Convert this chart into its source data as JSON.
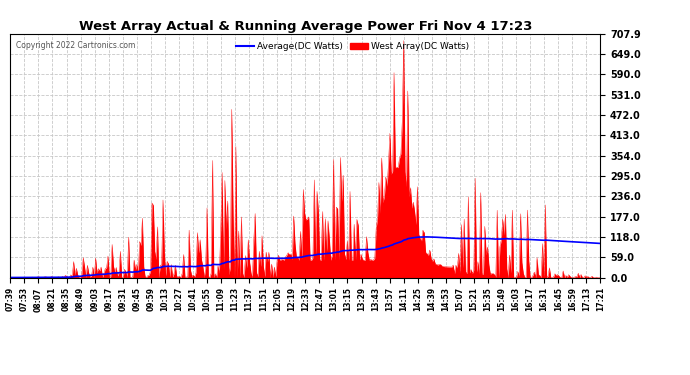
{
  "title": "West Array Actual & Running Average Power Fri Nov 4 17:23",
  "copyright": "Copyright 2022 Cartronics.com",
  "legend_avg": "Average(DC Watts)",
  "legend_west": "West Array(DC Watts)",
  "ymax": 707.9,
  "ymin": 0.0,
  "yticks": [
    0.0,
    59.0,
    118.0,
    177.0,
    236.0,
    295.0,
    354.0,
    413.0,
    472.0,
    531.0,
    590.0,
    649.0,
    707.9
  ],
  "bg_color": "#ffffff",
  "grid_color": "#c8c8c8",
  "west_color": "#ff0000",
  "avg_color": "#0000ff",
  "title_color": "#000000",
  "time_labels": [
    "07:39",
    "07:53",
    "08:07",
    "08:21",
    "08:35",
    "08:49",
    "09:03",
    "09:17",
    "09:31",
    "09:45",
    "09:59",
    "10:13",
    "10:27",
    "10:41",
    "10:55",
    "11:09",
    "11:23",
    "11:37",
    "11:51",
    "12:05",
    "12:19",
    "12:33",
    "12:47",
    "13:01",
    "13:15",
    "13:29",
    "13:43",
    "13:57",
    "14:11",
    "14:25",
    "14:39",
    "14:53",
    "15:07",
    "15:21",
    "15:35",
    "15:49",
    "16:03",
    "16:17",
    "16:31",
    "16:45",
    "16:59",
    "17:13",
    "17:21"
  ]
}
